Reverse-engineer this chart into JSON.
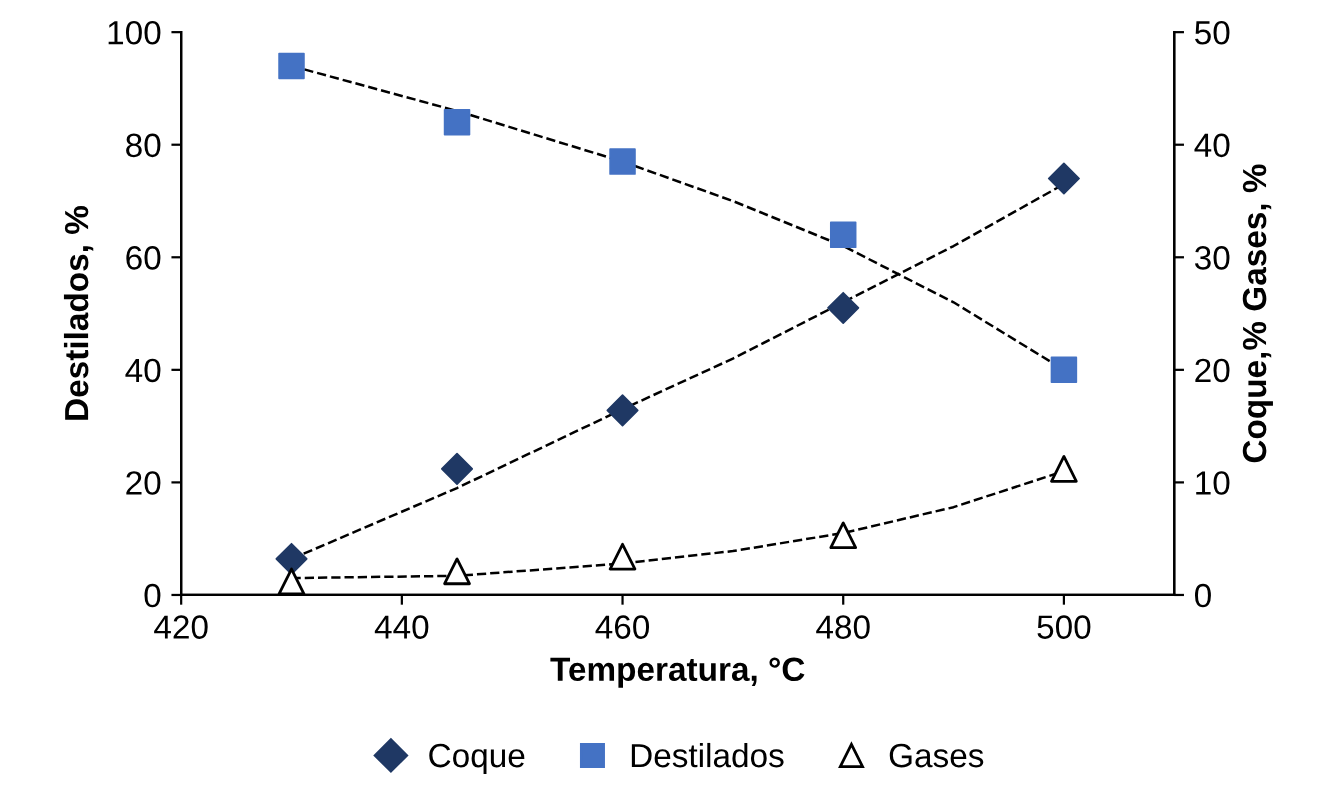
{
  "chart_data": {
    "type": "scatter",
    "xlabel": "Temperatura, °C",
    "ylabel": "Destilados, %",
    "y2label": "Coque,% Gases, %",
    "xlim": [
      420,
      510
    ],
    "xticks": [
      420,
      440,
      460,
      480,
      500
    ],
    "ylim": [
      0,
      100
    ],
    "yticks": [
      0,
      20,
      40,
      60,
      80,
      100
    ],
    "y2lim": [
      0,
      50
    ],
    "y2ticks": [
      0,
      10,
      20,
      30,
      40,
      50
    ],
    "grid": false,
    "legend": "bottom",
    "series": [
      {
        "name": "Coque",
        "marker": "diamond",
        "color": "#1f3864",
        "axis": "y2",
        "x": [
          430,
          445,
          460,
          480,
          500
        ],
        "values": [
          3.2,
          11.2,
          16.4,
          25.5,
          37
        ]
      },
      {
        "name": "Destilados",
        "marker": "square",
        "color": "#4472c4",
        "x": [
          430,
          445,
          460,
          480,
          500
        ],
        "values": [
          94,
          84,
          77,
          64,
          40
        ]
      },
      {
        "name": "Gases",
        "marker": "triangle",
        "color": "#ffffff",
        "axis": "y2",
        "x": [
          430,
          445,
          460,
          480,
          500
        ],
        "values": [
          1.2,
          2.1,
          3.4,
          5.3,
          11.2
        ]
      },
      {
        "type": "line",
        "line_style": "dashed",
        "color": "#000000",
        "x": [
          430,
          445,
          460,
          470,
          480,
          490,
          500
        ],
        "values": [
          94,
          86,
          77,
          70,
          62,
          52,
          40
        ]
      },
      {
        "type": "line",
        "line_style": "dashed",
        "color": "#000000",
        "axis": "y2",
        "x": [
          430,
          445,
          460,
          470,
          480,
          490,
          500
        ],
        "values": [
          3.2,
          9.5,
          16.5,
          21,
          26,
          31,
          36.5
        ]
      },
      {
        "type": "line",
        "line_style": "dashed",
        "color": "#000000",
        "axis": "y2",
        "x": [
          430,
          445,
          460,
          470,
          480,
          490,
          500
        ],
        "values": [
          1.5,
          1.7,
          2.8,
          3.9,
          5.5,
          7.8,
          11
        ]
      }
    ]
  }
}
